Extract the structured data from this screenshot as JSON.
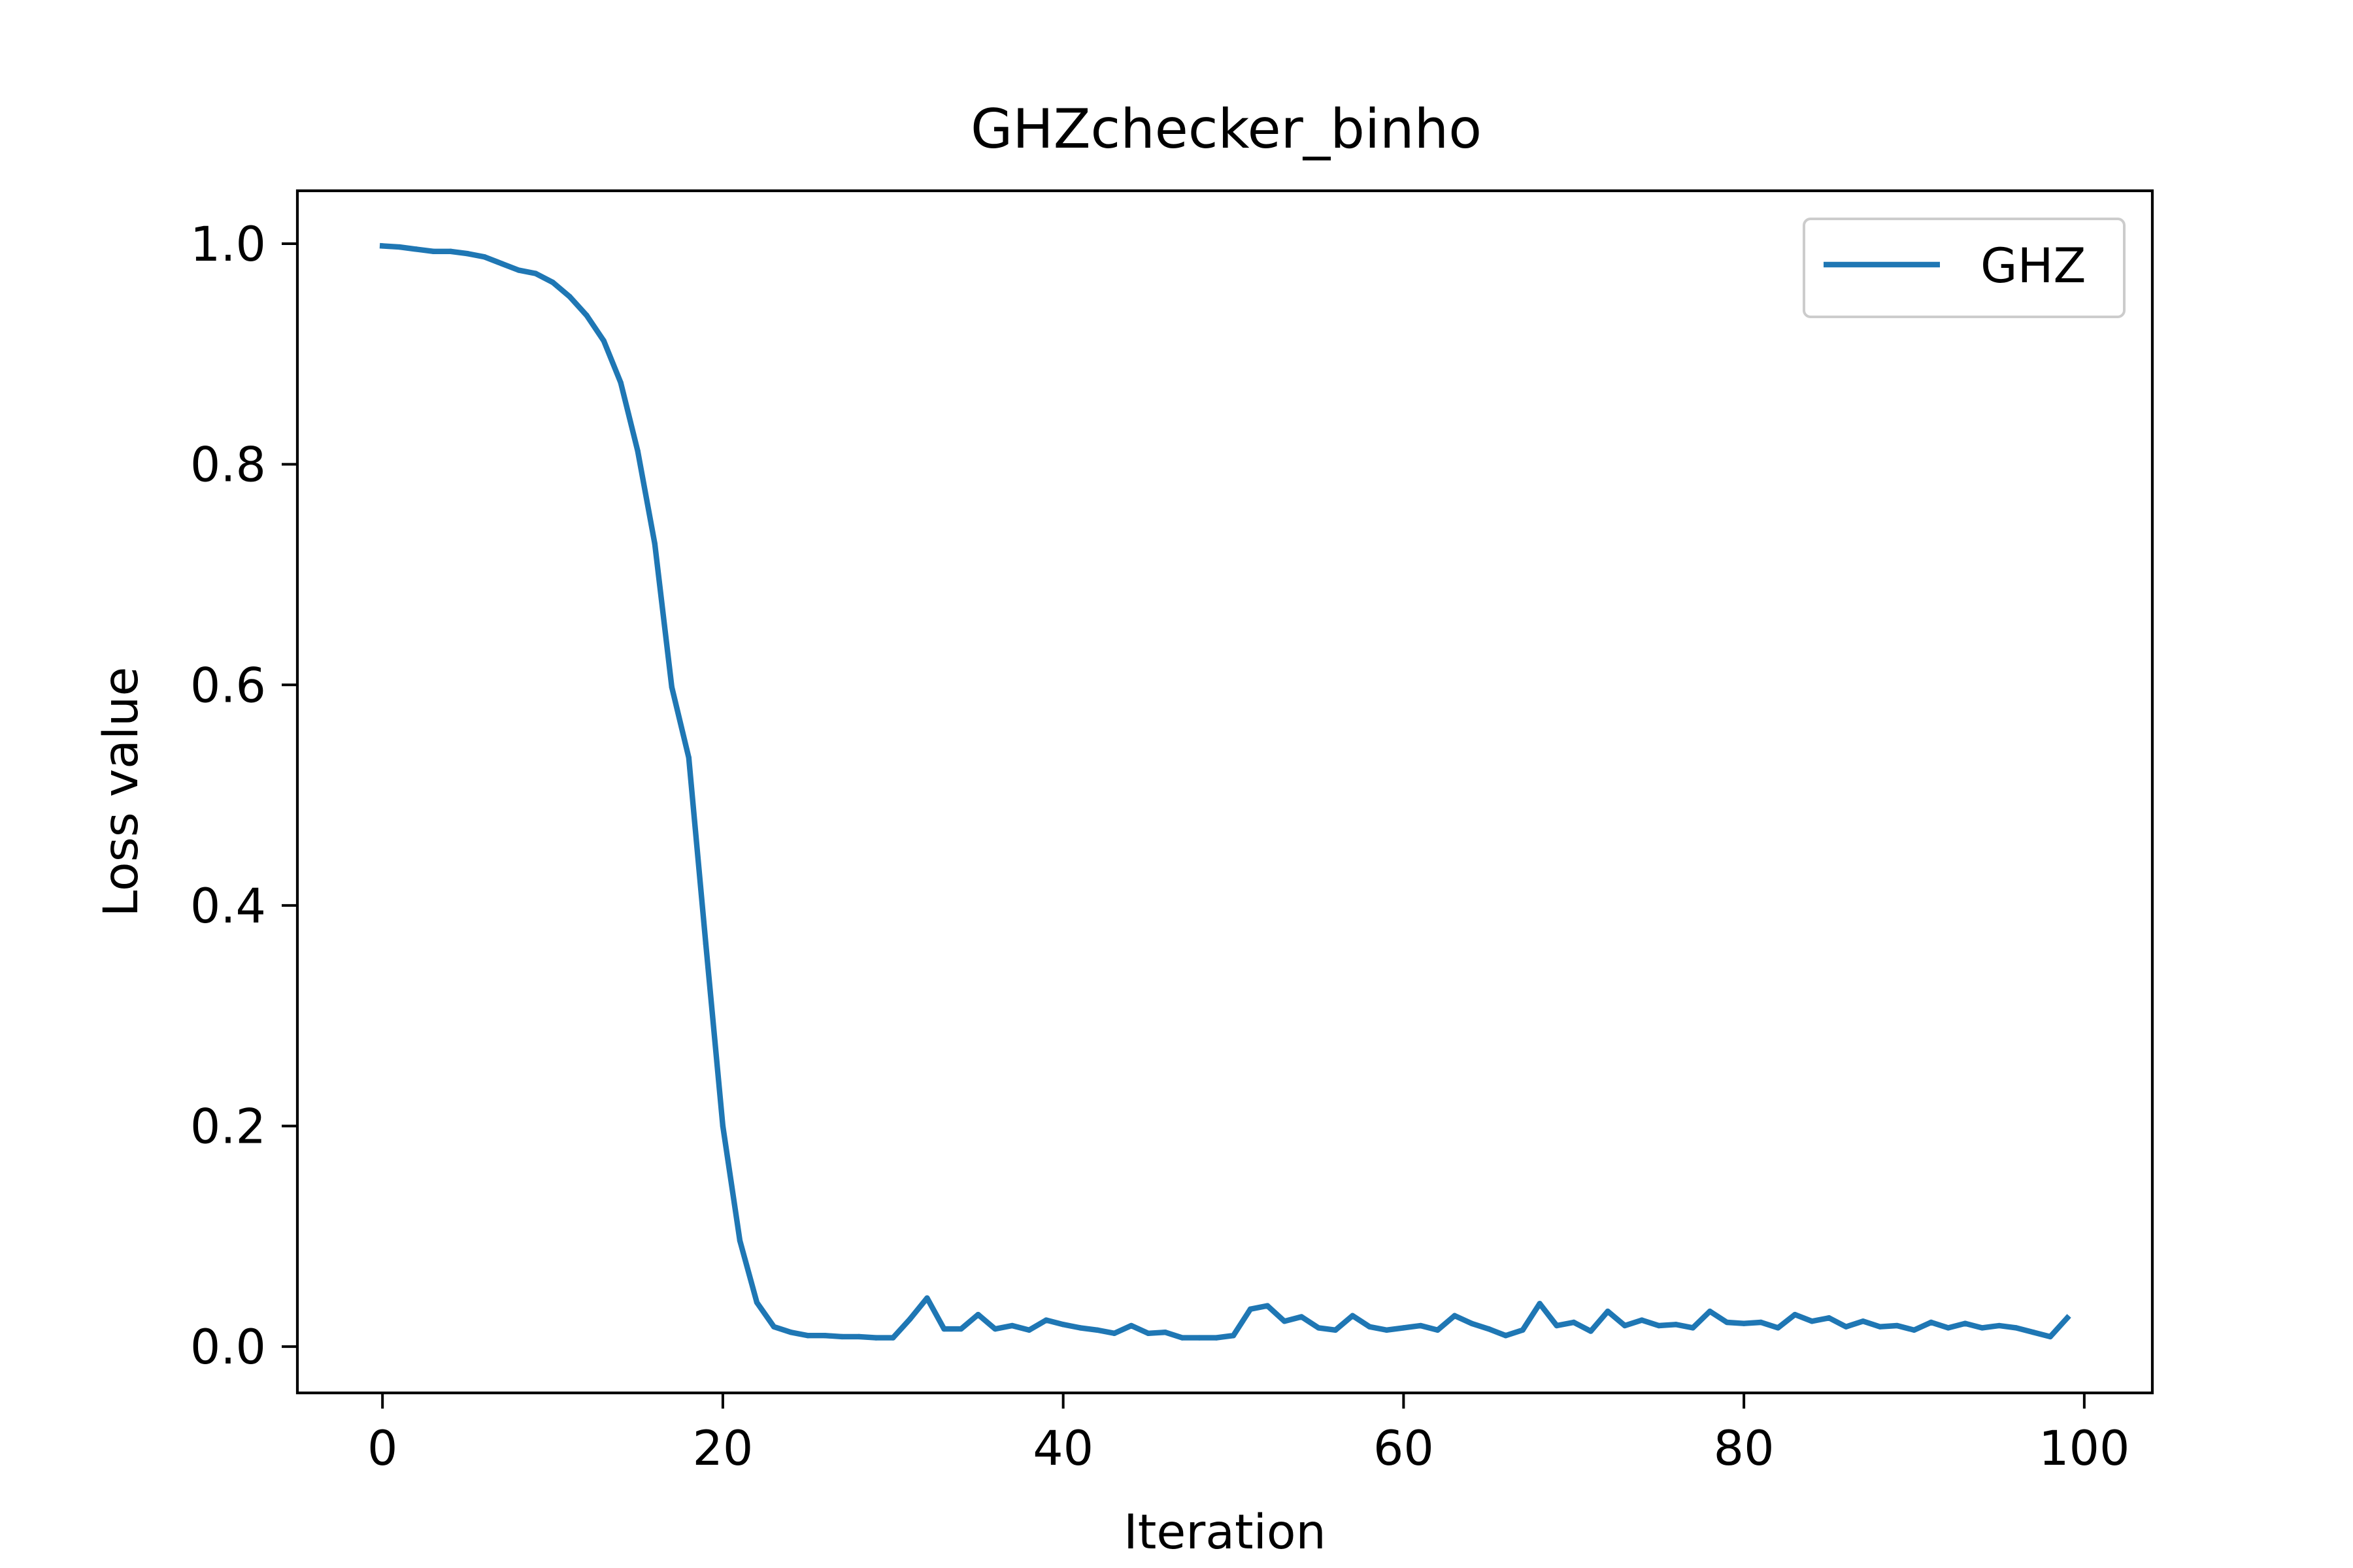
{
  "chart_data": {
    "type": "line",
    "title": "GHZchecker_binho",
    "xlabel": "Iteration",
    "ylabel": "Loss value",
    "xlim": [
      -5,
      104
    ],
    "ylim": [
      -0.042,
      1.048
    ],
    "xticks": [
      0,
      20,
      40,
      60,
      80,
      100
    ],
    "yticks": [
      0.0,
      0.2,
      0.4,
      0.6,
      0.8,
      1.0
    ],
    "xtick_labels": [
      "0",
      "20",
      "40",
      "60",
      "80",
      "100"
    ],
    "ytick_labels": [
      "0.0",
      "0.2",
      "0.4",
      "0.6",
      "0.8",
      "1.0"
    ],
    "grid": false,
    "legend_position": "top-right",
    "series": [
      {
        "name": "GHZ",
        "color": "#1f77b4",
        "x": [
          0,
          1,
          2,
          3,
          4,
          5,
          6,
          7,
          8,
          9,
          10,
          11,
          12,
          13,
          14,
          15,
          16,
          17,
          18,
          19,
          20,
          21,
          22,
          23,
          24,
          25,
          26,
          27,
          28,
          29,
          30,
          31,
          32,
          33,
          34,
          35,
          36,
          37,
          38,
          39,
          40,
          41,
          42,
          43,
          44,
          45,
          46,
          47,
          48,
          49,
          50,
          51,
          52,
          53,
          54,
          55,
          56,
          57,
          58,
          59,
          60,
          61,
          62,
          63,
          64,
          65,
          66,
          67,
          68,
          69,
          70,
          71,
          72,
          73,
          74,
          75,
          76,
          77,
          78,
          79,
          80,
          81,
          82,
          83,
          84,
          85,
          86,
          87,
          88,
          89,
          90,
          91,
          92,
          93,
          94,
          95,
          96,
          97,
          98,
          99
        ],
        "values": [
          0.998,
          0.997,
          0.995,
          0.993,
          0.993,
          0.991,
          0.988,
          0.982,
          0.976,
          0.973,
          0.965,
          0.952,
          0.935,
          0.912,
          0.874,
          0.812,
          0.728,
          0.598,
          0.534,
          0.365,
          0.2,
          0.096,
          0.04,
          0.018,
          0.013,
          0.01,
          0.01,
          0.009,
          0.009,
          0.008,
          0.008,
          0.025,
          0.044,
          0.016,
          0.016,
          0.029,
          0.016,
          0.019,
          0.015,
          0.024,
          0.02,
          0.017,
          0.015,
          0.012,
          0.019,
          0.012,
          0.013,
          0.008,
          0.008,
          0.008,
          0.01,
          0.034,
          0.037,
          0.023,
          0.027,
          0.017,
          0.015,
          0.028,
          0.018,
          0.015,
          0.017,
          0.019,
          0.015,
          0.028,
          0.021,
          0.016,
          0.01,
          0.015,
          0.039,
          0.019,
          0.022,
          0.014,
          0.032,
          0.019,
          0.024,
          0.019,
          0.02,
          0.017,
          0.032,
          0.022,
          0.021,
          0.022,
          0.017,
          0.029,
          0.023,
          0.026,
          0.018,
          0.023,
          0.018,
          0.019,
          0.015,
          0.022,
          0.017,
          0.021,
          0.017,
          0.019,
          0.017,
          0.013,
          0.009,
          0.026
        ]
      }
    ]
  }
}
